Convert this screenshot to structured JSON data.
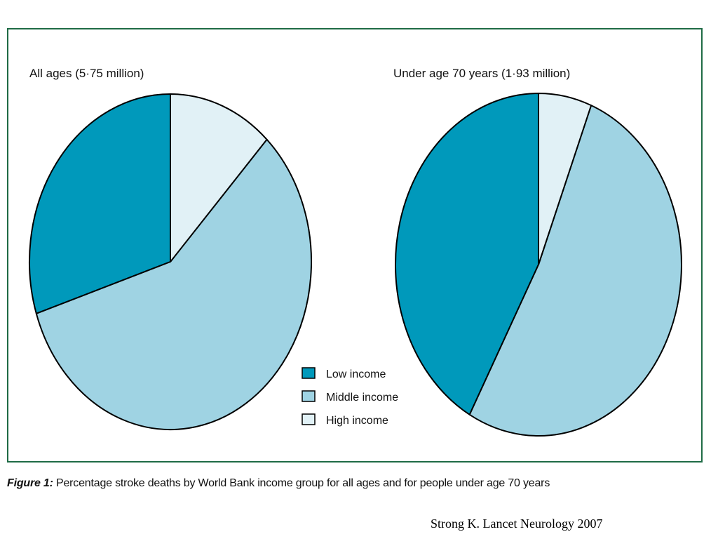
{
  "chart_data": [
    {
      "type": "pie",
      "title": "All ages (5·75 million)",
      "categories": [
        "Low income",
        "Middle income",
        "High income"
      ],
      "values": [
        30,
        58,
        12
      ],
      "colors": [
        "#0099bb",
        "#9fd3e3",
        "#e1f1f6"
      ]
    },
    {
      "type": "pie",
      "title": "Under age 70 years (1·93 million)",
      "categories": [
        "Low income",
        "Middle income",
        "High income"
      ],
      "values": [
        42,
        52,
        6
      ],
      "colors": [
        "#0099bb",
        "#9fd3e3",
        "#e1f1f6"
      ]
    }
  ],
  "legend": {
    "items": [
      {
        "label": "Low income",
        "color": "#0099bb"
      },
      {
        "label": "Middle income",
        "color": "#9fd3e3"
      },
      {
        "label": "High income",
        "color": "#e1f1f6"
      }
    ]
  },
  "caption": {
    "label": "Figure 1:",
    "text": " Percentage stroke deaths by World Bank income group for all ages and for people under age 70 years"
  },
  "source": "Strong K.  Lancet Neurology 2007",
  "colors": {
    "frame": "#1f6b45",
    "outline": "#000000"
  }
}
